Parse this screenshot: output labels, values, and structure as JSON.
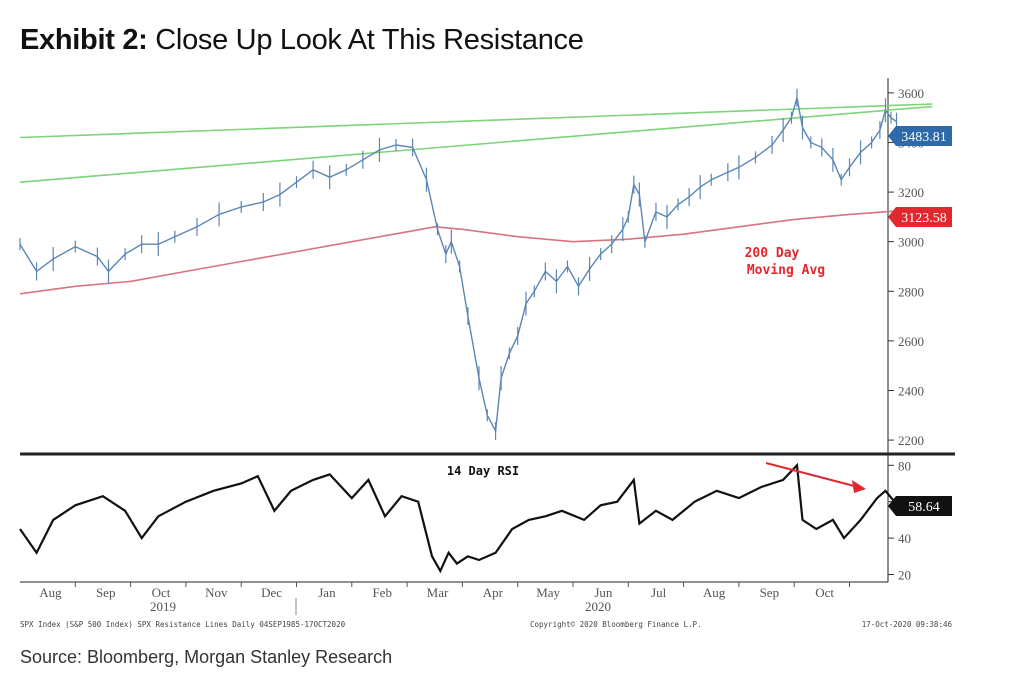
{
  "header": {
    "exhibit": "Exhibit 2:",
    "title": "Close Up Look At This Resistance"
  },
  "source": "Source: Bloomberg, Morgan Stanley Research",
  "footer": {
    "left": "SPX Index (S&P 500 Index) SPX Resistance Lines  Daily 04SEP1985-17OCT2020",
    "center": "Copyright© 2020 Bloomberg Finance L.P.",
    "right": "17-Oct-2020 09:38:46"
  },
  "colors": {
    "price": "#5b86b5",
    "ma": "#d9737f",
    "resistance": "#7fd37a",
    "rsi": "#111111",
    "arrow": "#e0282e",
    "last_price_label": "#2e6aa8",
    "ma_label": "#e0282e"
  },
  "chart_data": [
    {
      "type": "line",
      "panel": "price",
      "ylim": [
        2160,
        3660
      ],
      "yticks": [
        2200,
        2400,
        2600,
        2800,
        3000,
        3200,
        3400,
        3600
      ],
      "x_months": [
        "Aug",
        "Sep",
        "Oct",
        "Nov",
        "Dec",
        "Jan",
        "Feb",
        "Mar",
        "Apr",
        "May",
        "Jun",
        "Jul",
        "Aug",
        "Sep",
        "Oct"
      ],
      "year_labels": [
        "2019",
        "2020"
      ],
      "series": [
        {
          "key": "spx",
          "points": [
            [
              0,
              2990
            ],
            [
              0.3,
              2880
            ],
            [
              0.6,
              2930
            ],
            [
              1.0,
              2980
            ],
            [
              1.4,
              2940
            ],
            [
              1.6,
              2880
            ],
            [
              1.9,
              2950
            ],
            [
              2.2,
              2990
            ],
            [
              2.5,
              2990
            ],
            [
              2.8,
              3020
            ],
            [
              3.2,
              3060
            ],
            [
              3.6,
              3110
            ],
            [
              4.0,
              3140
            ],
            [
              4.4,
              3160
            ],
            [
              4.7,
              3190
            ],
            [
              5.0,
              3240
            ],
            [
              5.3,
              3290
            ],
            [
              5.6,
              3260
            ],
            [
              5.9,
              3290
            ],
            [
              6.2,
              3330
            ],
            [
              6.5,
              3370
            ],
            [
              6.8,
              3390
            ],
            [
              7.1,
              3380
            ],
            [
              7.35,
              3250
            ],
            [
              7.55,
              3050
            ],
            [
              7.7,
              2950
            ],
            [
              7.8,
              3000
            ],
            [
              7.95,
              2900
            ],
            [
              8.1,
              2700
            ],
            [
              8.3,
              2450
            ],
            [
              8.45,
              2300
            ],
            [
              8.6,
              2237
            ],
            [
              8.7,
              2450
            ],
            [
              8.85,
              2550
            ],
            [
              9.0,
              2620
            ],
            [
              9.15,
              2750
            ],
            [
              9.3,
              2800
            ],
            [
              9.5,
              2880
            ],
            [
              9.7,
              2840
            ],
            [
              9.9,
              2900
            ],
            [
              10.1,
              2820
            ],
            [
              10.3,
              2890
            ],
            [
              10.5,
              2950
            ],
            [
              10.7,
              2990
            ],
            [
              10.9,
              3050
            ],
            [
              11.0,
              3100
            ],
            [
              11.1,
              3230
            ],
            [
              11.2,
              3190
            ],
            [
              11.3,
              3000
            ],
            [
              11.5,
              3120
            ],
            [
              11.7,
              3100
            ],
            [
              11.9,
              3150
            ],
            [
              12.1,
              3180
            ],
            [
              12.3,
              3220
            ],
            [
              12.5,
              3250
            ],
            [
              12.8,
              3280
            ],
            [
              13.0,
              3300
            ],
            [
              13.3,
              3340
            ],
            [
              13.6,
              3390
            ],
            [
              13.8,
              3450
            ],
            [
              13.95,
              3500
            ],
            [
              14.05,
              3580
            ],
            [
              14.15,
              3460
            ],
            [
              14.3,
              3400
            ],
            [
              14.5,
              3380
            ],
            [
              14.7,
              3330
            ],
            [
              14.85,
              3250
            ],
            [
              15.0,
              3300
            ],
            [
              15.2,
              3360
            ],
            [
              15.4,
              3400
            ],
            [
              15.55,
              3450
            ],
            [
              15.65,
              3530
            ],
            [
              15.75,
              3500
            ],
            [
              15.85,
              3483.81
            ]
          ]
        },
        {
          "key": "ma200",
          "points": [
            [
              0,
              2790
            ],
            [
              1,
              2820
            ],
            [
              2,
              2840
            ],
            [
              3,
              2880
            ],
            [
              4,
              2920
            ],
            [
              5,
              2960
            ],
            [
              6,
              3000
            ],
            [
              7,
              3040
            ],
            [
              7.5,
              3060
            ],
            [
              8,
              3050
            ],
            [
              9,
              3020
            ],
            [
              10,
              3000
            ],
            [
              11,
              3010
            ],
            [
              12,
              3030
            ],
            [
              13,
              3060
            ],
            [
              14,
              3090
            ],
            [
              15,
              3110
            ],
            [
              15.85,
              3123.58
            ]
          ]
        },
        {
          "key": "resistance_upper",
          "points": [
            [
              0,
              3420
            ],
            [
              16.5,
              3555
            ]
          ]
        },
        {
          "key": "resistance_lower",
          "points": [
            [
              0,
              3240
            ],
            [
              16.5,
              3545
            ]
          ]
        }
      ],
      "last_value_label": "3483.81",
      "ma_value_label": "3123.58",
      "annotations": [
        "200 Day",
        "Moving Avg"
      ]
    },
    {
      "type": "line",
      "panel": "rsi",
      "title": "14 Day RSI",
      "ylim": [
        17,
        84
      ],
      "yticks": [
        20,
        40,
        60,
        80
      ],
      "series": [
        {
          "key": "rsi14",
          "points": [
            [
              0,
              45
            ],
            [
              0.3,
              32
            ],
            [
              0.6,
              50
            ],
            [
              1.0,
              58
            ],
            [
              1.5,
              63
            ],
            [
              1.9,
              55
            ],
            [
              2.2,
              40
            ],
            [
              2.5,
              52
            ],
            [
              3.0,
              60
            ],
            [
              3.5,
              66
            ],
            [
              4.0,
              70
            ],
            [
              4.3,
              74
            ],
            [
              4.6,
              55
            ],
            [
              4.9,
              66
            ],
            [
              5.3,
              72
            ],
            [
              5.6,
              75
            ],
            [
              6.0,
              62
            ],
            [
              6.3,
              72
            ],
            [
              6.6,
              52
            ],
            [
              6.9,
              63
            ],
            [
              7.2,
              60
            ],
            [
              7.45,
              30
            ],
            [
              7.6,
              22
            ],
            [
              7.75,
              32
            ],
            [
              7.9,
              26
            ],
            [
              8.1,
              30
            ],
            [
              8.3,
              28
            ],
            [
              8.6,
              32
            ],
            [
              8.9,
              45
            ],
            [
              9.2,
              50
            ],
            [
              9.5,
              52
            ],
            [
              9.8,
              55
            ],
            [
              10.2,
              50
            ],
            [
              10.5,
              58
            ],
            [
              10.8,
              60
            ],
            [
              11.1,
              72
            ],
            [
              11.2,
              48
            ],
            [
              11.5,
              55
            ],
            [
              11.8,
              50
            ],
            [
              12.2,
              60
            ],
            [
              12.6,
              66
            ],
            [
              13.0,
              62
            ],
            [
              13.4,
              68
            ],
            [
              13.8,
              72
            ],
            [
              14.05,
              80
            ],
            [
              14.15,
              50
            ],
            [
              14.4,
              45
            ],
            [
              14.7,
              50
            ],
            [
              14.9,
              40
            ],
            [
              15.2,
              50
            ],
            [
              15.5,
              62
            ],
            [
              15.65,
              66
            ],
            [
              15.85,
              58.64
            ]
          ]
        }
      ],
      "last_value_label": "58.64"
    }
  ]
}
